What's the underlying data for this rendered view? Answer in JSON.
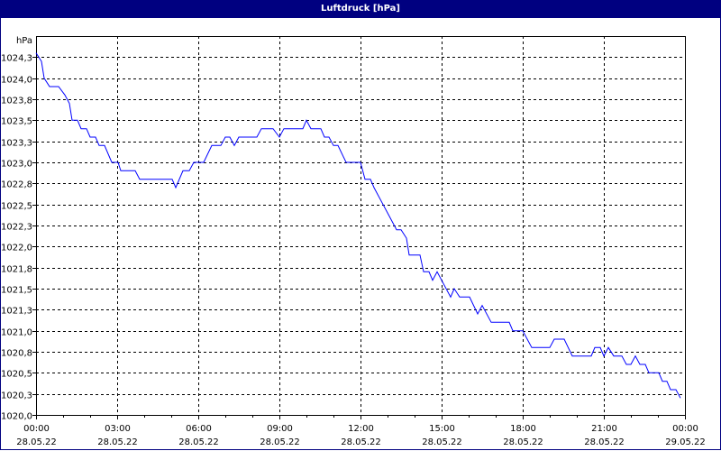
{
  "window": {
    "title": "Luftdruck [hPa]"
  },
  "chart_data": {
    "type": "line",
    "title": "Luftdruck [hPa]",
    "ylabel": "hPa",
    "xlabel": "",
    "ylim": [
      1020.0,
      1024.5
    ],
    "xlim": [
      "28.05.22 00:00",
      "29.05.22 00:00"
    ],
    "grid": true,
    "colors": {
      "line": "#0000ff",
      "title_bar": "#000080",
      "grid": "#000000"
    },
    "y_ticks": [
      {
        "value": 1020.0,
        "label": "1020,0"
      },
      {
        "value": 1020.25,
        "label": "1020,3"
      },
      {
        "value": 1020.5,
        "label": "1020,5"
      },
      {
        "value": 1020.75,
        "label": "1020,8"
      },
      {
        "value": 1021.0,
        "label": "1021,0"
      },
      {
        "value": 1021.25,
        "label": "1021,3"
      },
      {
        "value": 1021.5,
        "label": "1021,5"
      },
      {
        "value": 1021.75,
        "label": "1021,8"
      },
      {
        "value": 1022.0,
        "label": "1022,0"
      },
      {
        "value": 1022.25,
        "label": "1022,3"
      },
      {
        "value": 1022.5,
        "label": "1022,5"
      },
      {
        "value": 1022.75,
        "label": "1022,8"
      },
      {
        "value": 1023.0,
        "label": "1023,0"
      },
      {
        "value": 1023.25,
        "label": "1023,3"
      },
      {
        "value": 1023.5,
        "label": "1023,5"
      },
      {
        "value": 1023.75,
        "label": "1023,8"
      },
      {
        "value": 1024.0,
        "label": "1024,0"
      },
      {
        "value": 1024.25,
        "label": "1024,3"
      }
    ],
    "x_ticks": [
      {
        "time": "00:00",
        "date": "28.05.22"
      },
      {
        "time": "03:00",
        "date": "28.05.22"
      },
      {
        "time": "06:00",
        "date": "28.05.22"
      },
      {
        "time": "09:00",
        "date": "28.05.22"
      },
      {
        "time": "12:00",
        "date": "28.05.22"
      },
      {
        "time": "15:00",
        "date": "28.05.22"
      },
      {
        "time": "18:00",
        "date": "28.05.22"
      },
      {
        "time": "21:00",
        "date": "28.05.22"
      },
      {
        "time": "00:00",
        "date": "29.05.22"
      }
    ],
    "series": [
      {
        "x": [
          "00:00",
          "00:12",
          "00:18",
          "00:30",
          "00:50",
          "01:04",
          "01:14",
          "01:20",
          "01:32",
          "01:40",
          "01:52",
          "02:00",
          "02:12",
          "02:20",
          "02:32",
          "02:48",
          "03:02",
          "03:08",
          "03:40",
          "03:50",
          "05:02",
          "05:10",
          "05:26",
          "05:40",
          "05:50",
          "06:12",
          "06:30",
          "06:50",
          "07:00",
          "07:10",
          "07:20",
          "07:30",
          "08:10",
          "08:20",
          "08:46",
          "09:00",
          "09:10",
          "09:52",
          "10:00",
          "10:10",
          "10:32",
          "10:40",
          "10:50",
          "11:00",
          "11:10",
          "11:28",
          "12:00",
          "12:10",
          "12:22",
          "12:30",
          "12:50",
          "13:00",
          "13:20",
          "13:30",
          "13:42",
          "13:48",
          "14:12",
          "14:20",
          "14:32",
          "14:40",
          "14:50",
          "15:00",
          "15:20",
          "15:28",
          "15:40",
          "16:02",
          "16:20",
          "16:30",
          "16:50",
          "17:30",
          "17:38",
          "18:00",
          "18:20",
          "19:00",
          "19:10",
          "19:32",
          "19:50",
          "20:32",
          "20:40",
          "20:52",
          "21:00",
          "21:10",
          "21:22",
          "21:40",
          "21:50",
          "22:00",
          "22:10",
          "22:20",
          "22:32",
          "22:40",
          "23:02",
          "23:10",
          "23:20",
          "23:28",
          "23:40",
          "23:50"
        ],
        "y": [
          1024.3,
          1024.2,
          1024.0,
          1023.9,
          1023.9,
          1023.8,
          1023.7,
          1023.5,
          1023.5,
          1023.4,
          1023.4,
          1023.3,
          1023.3,
          1023.2,
          1023.2,
          1023.0,
          1023.0,
          1022.9,
          1022.9,
          1022.8,
          1022.8,
          1022.7,
          1022.9,
          1022.9,
          1023.0,
          1023.0,
          1023.2,
          1023.2,
          1023.3,
          1023.3,
          1023.2,
          1023.3,
          1023.3,
          1023.4,
          1023.4,
          1023.3,
          1023.4,
          1023.4,
          1023.5,
          1023.4,
          1023.4,
          1023.3,
          1023.3,
          1023.2,
          1023.2,
          1023.0,
          1023.0,
          1022.8,
          1022.8,
          1022.7,
          1022.5,
          1022.4,
          1022.2,
          1022.2,
          1022.1,
          1021.9,
          1021.9,
          1021.7,
          1021.7,
          1021.6,
          1021.7,
          1021.6,
          1021.4,
          1021.5,
          1021.4,
          1021.4,
          1021.2,
          1021.3,
          1021.1,
          1021.1,
          1021.0,
          1021.0,
          1020.8,
          1020.8,
          1020.9,
          1020.9,
          1020.7,
          1020.7,
          1020.8,
          1020.8,
          1020.7,
          1020.8,
          1020.7,
          1020.7,
          1020.6,
          1020.6,
          1020.7,
          1020.6,
          1020.6,
          1020.5,
          1020.5,
          1020.4,
          1020.4,
          1020.3,
          1020.3,
          1020.2
        ]
      }
    ]
  }
}
